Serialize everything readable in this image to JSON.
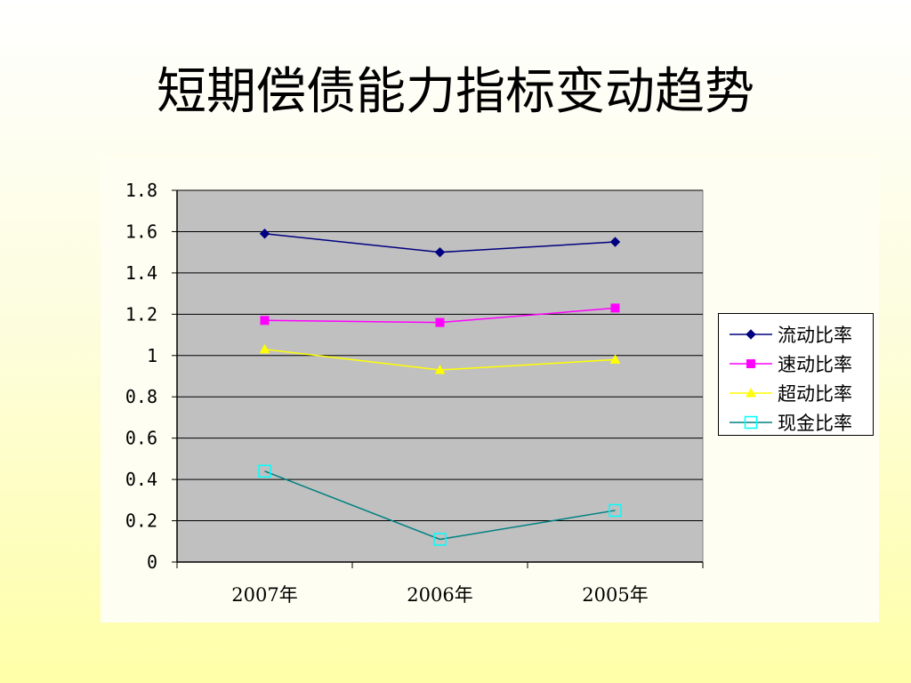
{
  "slide": {
    "title": "短期偿债能力指标变动趋势"
  },
  "chart_data": {
    "type": "line",
    "categories": [
      "2007年",
      "2006年",
      "2005年"
    ],
    "ylim": [
      0,
      1.8
    ],
    "yticks": [
      "0",
      "0.2",
      "0.4",
      "0.6",
      "0.8",
      "1",
      "1.2",
      "1.4",
      "1.6",
      "1.8"
    ],
    "grid": true,
    "plot_background": "#c0c0c0",
    "legend_position": "right",
    "xlabel": "",
    "ylabel": "",
    "series": [
      {
        "name": "流动比率",
        "values": [
          1.59,
          1.5,
          1.55
        ],
        "color": "#000080",
        "line_color": "#000080",
        "marker": "diamond"
      },
      {
        "name": "速动比率",
        "values": [
          1.17,
          1.16,
          1.23
        ],
        "color": "#ff00ff",
        "line_color": "#ff00ff",
        "marker": "square"
      },
      {
        "name": "超动比率",
        "values": [
          1.03,
          0.93,
          0.98
        ],
        "color": "#ffff00",
        "line_color": "#ffff00",
        "marker": "triangle"
      },
      {
        "name": "现金比率",
        "values": [
          0.44,
          0.11,
          0.25
        ],
        "color": "#00ffff",
        "line_color": "#008080",
        "marker": "hollow-square"
      }
    ]
  }
}
